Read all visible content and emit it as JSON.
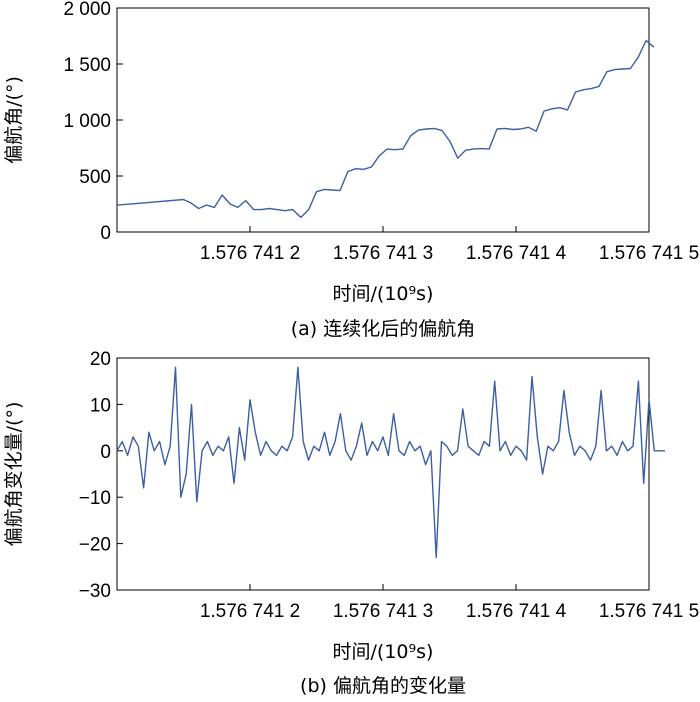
{
  "chart_data": [
    {
      "type": "line",
      "ylabel": "偏航角/(°)",
      "xlabel": "时间/(10⁹s)",
      "xlim": [
        1.5767411,
        1.5767415
      ],
      "ylim": [
        0,
        2000
      ],
      "yticks": [
        0,
        500,
        1000,
        1500,
        2000
      ],
      "ytick_labels": [
        "0",
        "500",
        "1 000",
        "1 500",
        "2 000"
      ],
      "xticks": [
        1.5767412,
        1.5767413,
        1.5767414,
        1.5767415
      ],
      "xtick_labels": [
        "1.576 741 2",
        "1.576 741 3",
        "1.576 741 4",
        "1.576 741 5"
      ],
      "caption": "(a) 连续化后的偏航角",
      "grid": false,
      "color": "#3b5fa6",
      "series": [
        {
          "x": [
            1.5767411,
            1.57674112,
            1.57674115,
            1.5767411555,
            1.5767411614,
            1.5767411673,
            1.5767411732,
            1.5767411791,
            1.576741185,
            1.5767411909,
            1.5767411968,
            1.5767412027,
            1.5767412086,
            1.5767412145,
            1.5767412204,
            1.5767412263,
            1.5767412322,
            1.5767412382,
            1.5767412441,
            1.57674125,
            1.5767412559,
            1.5767412618,
            1.5767412677,
            1.5767412736,
            1.5767412795,
            1.5767412854,
            1.5767412913,
            1.5767412972,
            1.5767413031,
            1.576741309,
            1.5767413149,
            1.5767413208,
            1.5767413267,
            1.5767413326,
            1.5767413385,
            1.5767413444,
            1.5767413503,
            1.5767413562,
            1.5767413621,
            1.576741368,
            1.5767413739,
            1.5767413798,
            1.5767413857,
            1.5767413916,
            1.5767413975,
            1.5767414034,
            1.5767414093,
            1.5767414152,
            1.5767414211,
            1.576741427,
            1.5767414329,
            1.5767414388,
            1.5767414447,
            1.5767414506,
            1.5767414565,
            1.5767414624,
            1.5767414683,
            1.5767414742,
            1.5767414801,
            1.576741486,
            1.5767414919,
            1.5767414978,
            1.5767415037
          ],
          "y": [
            240,
            260,
            290,
            260,
            210,
            240,
            220,
            330,
            250,
            220,
            280,
            200,
            200,
            210,
            200,
            190,
            200,
            130,
            200,
            360,
            380,
            375,
            370,
            540,
            565,
            560,
            580,
            680,
            740,
            735,
            740,
            860,
            910,
            920,
            925,
            905,
            810,
            660,
            730,
            740,
            745,
            740,
            920,
            925,
            915,
            920,
            935,
            900,
            1080,
            1100,
            1110,
            1090,
            1250,
            1270,
            1280,
            1300,
            1430,
            1450,
            1455,
            1460,
            1560,
            1710,
            1650
          ]
        }
      ]
    },
    {
      "type": "line",
      "ylabel": "偏航角变化量/(°)",
      "xlabel": "时间/(10⁹s)",
      "xlim": [
        1.5767411,
        1.5767415
      ],
      "ylim": [
        -30,
        20
      ],
      "yticks": [
        -30,
        -20,
        -10,
        0,
        10,
        20
      ],
      "ytick_labels": [
        "−30",
        "−20",
        "−10",
        "0",
        "10",
        "20"
      ],
      "xticks": [
        1.5767412,
        1.5767413,
        1.5767414,
        1.5767415
      ],
      "xtick_labels": [
        "1.576 741 2",
        "1.576 741 3",
        "1.576 741 4",
        "1.576 741 5"
      ],
      "caption": "(b) 偏航角的变化量",
      "grid": false,
      "color": "#3b5fa6",
      "series": [
        {
          "x": [
            1.5767411,
            1.576741104,
            1.576741108,
            1.576741112,
            1.576741116,
            1.57674112,
            1.576741124,
            1.576741128,
            1.576741132,
            1.576741136,
            1.57674114,
            1.576741144,
            1.576741148,
            1.576741152,
            1.576741156,
            1.57674116,
            1.576741164,
            1.576741168,
            1.576741172,
            1.576741176,
            1.57674118,
            1.576741184,
            1.576741188,
            1.576741192,
            1.576741196,
            1.5767412,
            1.576741204,
            1.576741208,
            1.576741212,
            1.576741216,
            1.57674122,
            1.576741224,
            1.576741228,
            1.576741232,
            1.576741236,
            1.57674124,
            1.576741244,
            1.576741248,
            1.576741252,
            1.576741256,
            1.57674126,
            1.576741264,
            1.576741268,
            1.576741272,
            1.576741276,
            1.57674128,
            1.576741284,
            1.576741288,
            1.576741292,
            1.576741296,
            1.5767413,
            1.576741304,
            1.576741308,
            1.576741312,
            1.576741316,
            1.57674132,
            1.576741324,
            1.576741328,
            1.576741332,
            1.576741336,
            1.57674134,
            1.576741344,
            1.576741348,
            1.576741352,
            1.576741356,
            1.57674136,
            1.576741364,
            1.576741368,
            1.576741372,
            1.576741376,
            1.57674138,
            1.576741384,
            1.576741388,
            1.576741392,
            1.576741396,
            1.5767414,
            1.576741404,
            1.576741408,
            1.576741412,
            1.576741416,
            1.57674142,
            1.576741424,
            1.576741428,
            1.576741432,
            1.576741436,
            1.57674144,
            1.576741444,
            1.576741448,
            1.576741452,
            1.576741456,
            1.57674146,
            1.576741464,
            1.576741468,
            1.576741472,
            1.576741476,
            1.57674148,
            1.576741484,
            1.576741488,
            1.576741492,
            1.576741496,
            1.5767415,
            1.576741504,
            1.576741508,
            1.576741512
          ],
          "y": [
            0,
            2,
            -1,
            3,
            1,
            -8,
            4,
            0,
            2,
            -3,
            1,
            18,
            -10,
            -5,
            10,
            -11,
            0,
            2,
            -1,
            1,
            0,
            3,
            -7,
            5,
            -2,
            11,
            4,
            -1,
            2,
            0,
            -1,
            1,
            0,
            3,
            18,
            2,
            -2,
            1,
            0,
            4,
            -1,
            2,
            8,
            0,
            -2,
            1,
            6,
            -1,
            2,
            0,
            3,
            -1,
            8,
            0,
            -1,
            2,
            0,
            1,
            -3,
            0,
            -23,
            2,
            1,
            -1,
            0,
            9,
            1,
            0,
            -1,
            2,
            1,
            15,
            0,
            2,
            -1,
            1,
            0,
            -2,
            16,
            3,
            -5,
            1,
            0,
            2,
            13,
            4,
            -1,
            1,
            0,
            -2,
            1,
            13,
            0,
            1,
            -1,
            2,
            0,
            1,
            15,
            -7,
            11,
            0,
            0,
            0
          ]
        }
      ]
    }
  ]
}
